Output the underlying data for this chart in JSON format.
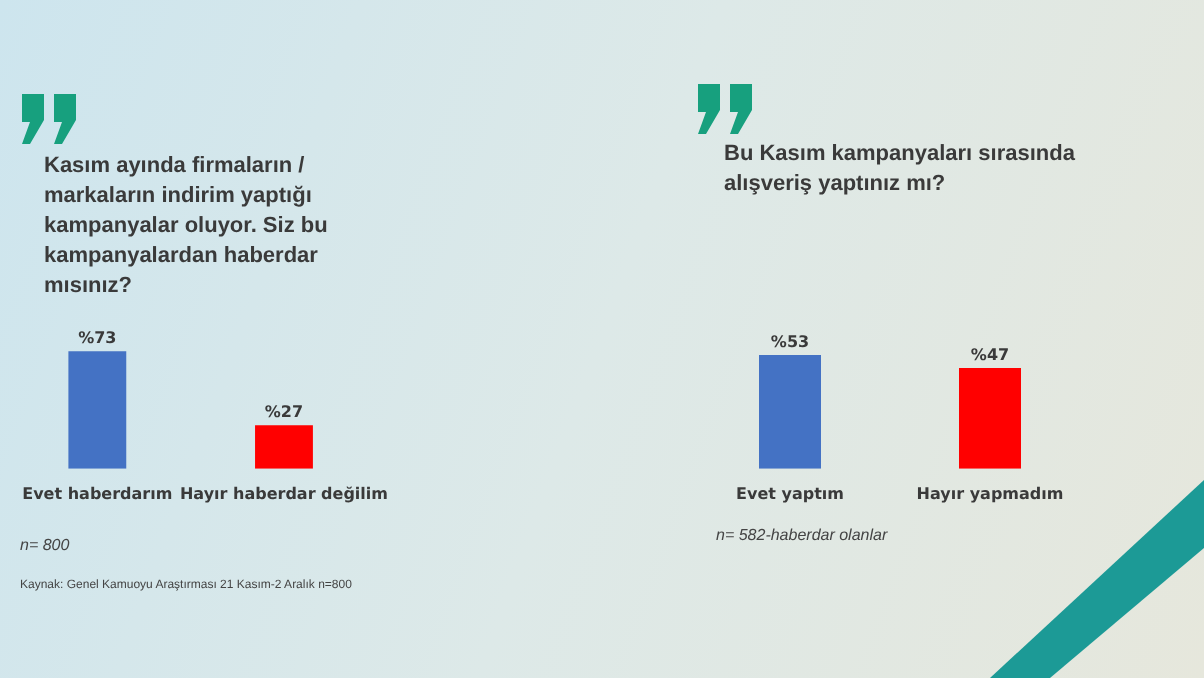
{
  "chart_data": [
    {
      "type": "bar",
      "title": "Kasım ayında firmaların / markaların indirim yaptığı kampanyalar oluyor. Siz bu kampanyalardan haberdar mısınız?",
      "categories": [
        "Evet haberdarım",
        "Hayır haberdar değilim"
      ],
      "values": [
        73,
        27
      ],
      "colors": [
        "#4472c4",
        "#ff0000"
      ],
      "value_labels": [
        "%73",
        "%27"
      ],
      "annotations": [
        "n= 800",
        "Kaynak: Genel Kamuoyu Araştırması 21 Kasım-2 Aralık n=800"
      ],
      "grid": false,
      "legend": false
    },
    {
      "type": "bar",
      "title": "Bu Kasım kampanyaları sırasında alışveriş yaptınız mı?",
      "categories": [
        "Evet yaptım",
        "Hayır yapmadım"
      ],
      "values": [
        53,
        47
      ],
      "colors": [
        "#4472c4",
        "#ff0000"
      ],
      "value_labels": [
        "%53",
        "%47"
      ],
      "annotations": [
        "n= 582-haberdar olanlar"
      ],
      "grid": false,
      "legend": false
    }
  ]
}
